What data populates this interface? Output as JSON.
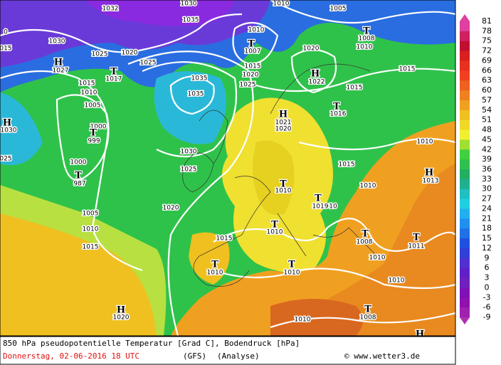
{
  "map": {
    "legend": {
      "values": [
        81,
        78,
        75,
        72,
        69,
        66,
        63,
        60,
        57,
        54,
        51,
        48,
        45,
        42,
        39,
        36,
        33,
        30,
        27,
        24,
        21,
        18,
        15,
        12,
        9,
        6,
        3,
        0,
        -3,
        -6,
        -9
      ]
    },
    "isobar_labels": [
      "1030",
      "1035",
      "1030",
      "1025",
      "1020",
      "1025",
      "1015",
      "1010",
      "1005",
      "1000",
      "999",
      "1000",
      "987",
      "1005",
      "1010",
      "1015",
      "1035",
      "1035",
      "1030",
      "1025",
      "1020",
      "1015",
      "1010",
      "1010",
      "1010",
      "1010",
      "1008",
      "1011",
      "1010",
      "1010",
      "1010",
      "1008",
      "1020",
      "1010",
      "1020",
      "1025",
      "1015",
      "1007",
      "1020",
      "1022",
      "1015",
      "1016",
      "1015",
      "1010",
      "1013",
      "1015",
      "1010",
      "1021",
      "1020",
      "1010",
      "1005",
      "1008",
      "1010",
      "1032",
      "1027",
      "1017",
      "1030",
      "025",
      "015",
      "0",
      "1019",
      "10"
    ],
    "pressure_centers": [
      "H",
      "T",
      "H",
      "T",
      "T",
      "T",
      "T",
      "H",
      "T",
      "H",
      "T",
      "T",
      "T",
      "T",
      "T",
      "T",
      "T",
      "H",
      "H",
      "T",
      "H"
    ],
    "footer": {
      "title": "850 hPa pseudopotentielle Temperatur [Grad C], Bodendruck [hPa]",
      "date": "Donnerstag, 02-06-2016  18 UTC",
      "model": "(GFS)",
      "run": "(Analyse)",
      "source": "© www.wetter3.de"
    }
  }
}
